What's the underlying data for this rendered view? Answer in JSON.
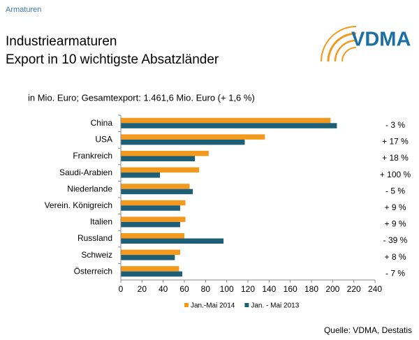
{
  "header": "Armaturen",
  "logo": "VDMA",
  "chart_data": {
    "type": "hbar",
    "title": [
      "Industriearmaturen",
      "Export in 10 wichtigste Absatzländer"
    ],
    "subtitle": "in Mio. Euro; Gesamtexport: 1.461,6 Mio. Euro (+ 1,6 %)",
    "categories": [
      "China",
      "USA",
      "Frankreich",
      "Saudi-Arabien",
      "Niederlande",
      "Verein. Königreich",
      "Italien",
      "Russland",
      "Schweiz",
      "Österreich"
    ],
    "series": [
      {
        "name": "Jan.-Mai 2014",
        "color": "#f39a1e",
        "values": [
          198,
          136,
          83,
          74,
          65,
          61,
          61,
          60,
          56,
          55
        ]
      },
      {
        "name": "Jan. - Mai 2013",
        "color": "#1d5f76",
        "values": [
          204,
          117,
          70,
          37,
          68,
          56,
          56,
          97,
          51,
          58
        ]
      }
    ],
    "changes": [
      "- 3 %",
      "+ 17 %",
      "+ 18 %",
      "+ 100 %",
      "- 5 %",
      "+ 9 %",
      "+ 9 %",
      "- 39 %",
      "+ 8 %",
      "- 7 %"
    ],
    "xlim": [
      0,
      240
    ],
    "xticks": [
      0,
      20,
      40,
      60,
      80,
      100,
      120,
      140,
      160,
      180,
      200,
      220,
      240
    ],
    "legend": "bottom",
    "source": "Quelle: VDMA, Destatis"
  }
}
